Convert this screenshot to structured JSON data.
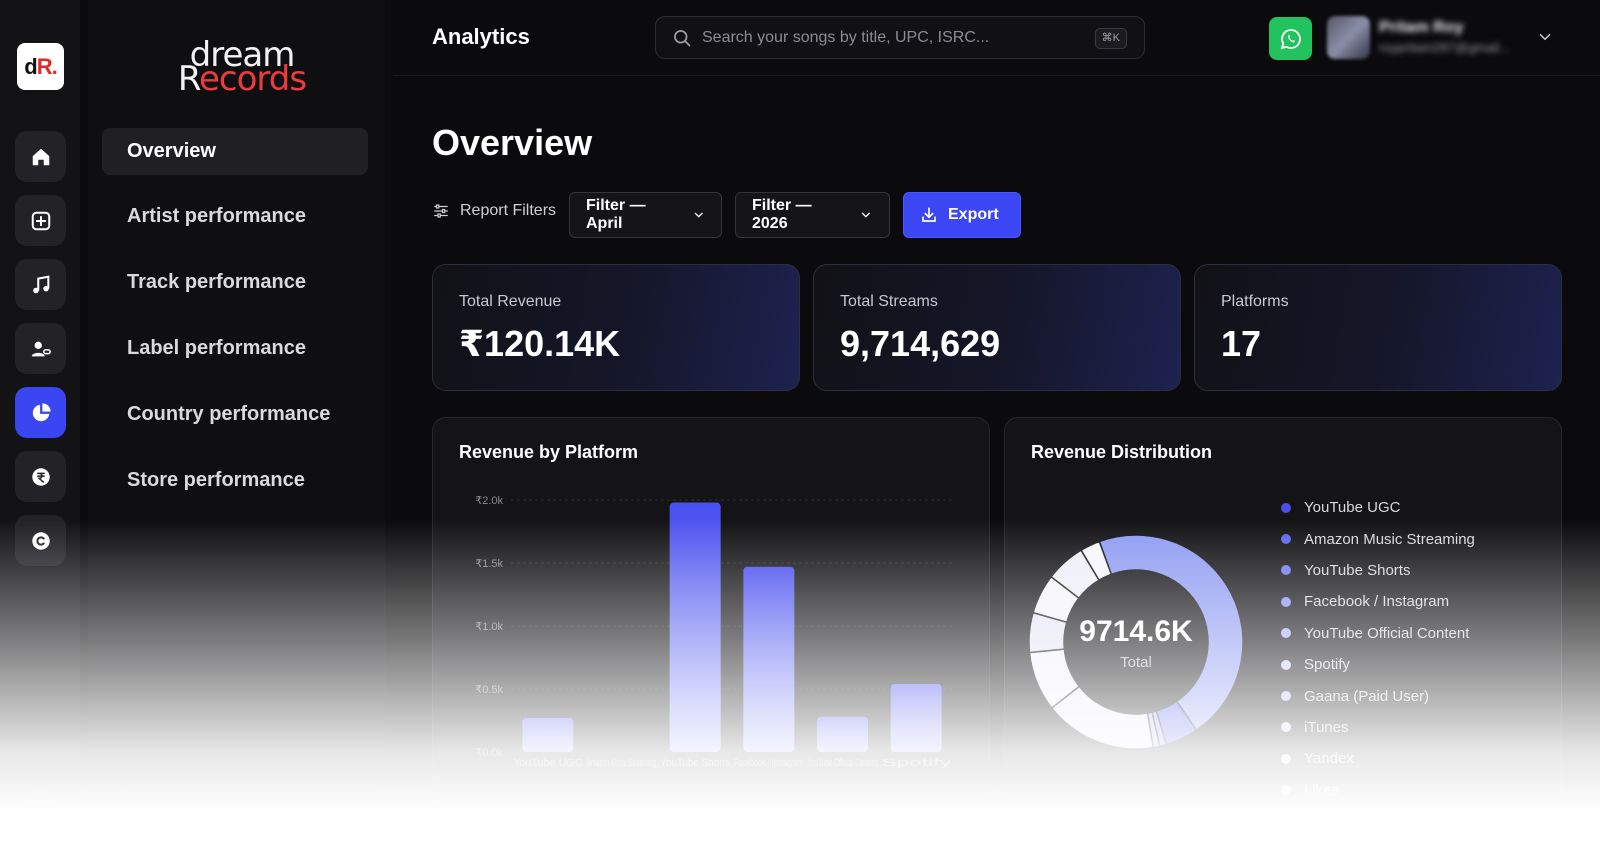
{
  "rail": {
    "logo": {
      "text_a": "d",
      "text_b": "R",
      "dot": "."
    },
    "buttons": [
      {
        "icon": "home-icon"
      },
      {
        "icon": "add-square-icon"
      },
      {
        "icon": "music-note-icon"
      },
      {
        "icon": "user-link-icon"
      },
      {
        "icon": "pie-chart-icon",
        "active": true
      },
      {
        "icon": "rupee-icon"
      },
      {
        "icon": "copyright-icon"
      }
    ],
    "support_icon": "headphones-icon"
  },
  "brand": {
    "line1": "dream",
    "line2_first": "R",
    "line2_rest": "ecords"
  },
  "nav": {
    "items": [
      {
        "label": "Overview",
        "active": true
      },
      {
        "label": "Artist performance"
      },
      {
        "label": "Track performance"
      },
      {
        "label": "Label performance"
      },
      {
        "label": "Country performance"
      },
      {
        "label": "Store performance"
      }
    ]
  },
  "topbar": {
    "title": "Analytics",
    "search_placeholder": "Search your songs by title, UPC, ISRC...",
    "search_shortcut": "⌘K",
    "user_name": "Pritam Roy",
    "user_email": "roypritam297@gmail..."
  },
  "page": {
    "title": "Overview",
    "filters_label": "Report Filters",
    "filter_month": "Filter — April",
    "filter_year": "Filter — 2026",
    "export_label": "Export"
  },
  "stats": [
    {
      "label": "Total Revenue",
      "value": "₹120.14K"
    },
    {
      "label": "Total Streams",
      "value": "9,714,629"
    },
    {
      "label": "Platforms",
      "value": "17"
    }
  ],
  "revenue_by_platform": {
    "title": "Revenue by Platform",
    "chart_data": {
      "type": "bar",
      "categories": [
        "YouTube UGC",
        "Amazon Music Streaming",
        "YouTube Shorts",
        "Facebook / Instagram",
        "YouTube Official Content",
        "Spotify"
      ],
      "category_labels": [
        "YouTube UGC",
        "Amazon Music Streaming",
        "YouTube Shorts",
        "Facebook / Instagram",
        "YouTube Official Content",
        "Spotify"
      ],
      "values": [
        270,
        0,
        1980,
        1470,
        280,
        540
      ],
      "ylim": [
        0,
        2000
      ],
      "yticks": [
        "₹2.0k",
        "₹1.5k",
        "₹1.0k",
        "₹0.5k",
        "₹0.0k"
      ],
      "ytick_values": [
        2000,
        1500,
        1000,
        500,
        0
      ],
      "bar_color_top": "#4a4ff0",
      "bar_color_bottom": "#8d95f5"
    }
  },
  "revenue_distribution": {
    "title": "Revenue Distribution",
    "center_value": "9714.6K",
    "center_label": "Total",
    "chart_data": {
      "type": "pie",
      "labels": [
        "YouTube UGC",
        "Amazon Music Streaming",
        "YouTube Shorts",
        "Facebook / Instagram",
        "YouTube Official Content",
        "Spotify",
        "Gaana (Paid User)",
        "iTunes",
        "Yandex",
        "Likee"
      ],
      "values": [
        46,
        5,
        1,
        1,
        17,
        9,
        6,
        6,
        6,
        3
      ],
      "colors": [
        "#8f9cf2",
        "#5d66ec",
        "#9aa4f5",
        "#b4bbf8",
        "#ededf9",
        "#f2f2fb",
        "#e6e6f7",
        "#f4f4fb",
        "#eeeef8",
        "#f7f7fc"
      ]
    },
    "legend_colors": [
      "#4b50ea",
      "#5d66ec",
      "#6f78f1",
      "#8a92f4",
      "#a9aff7",
      "#c7cbfa",
      "#b9bff8",
      "#d9dcfb",
      "#e3e5fb",
      "#eceefc"
    ]
  }
}
